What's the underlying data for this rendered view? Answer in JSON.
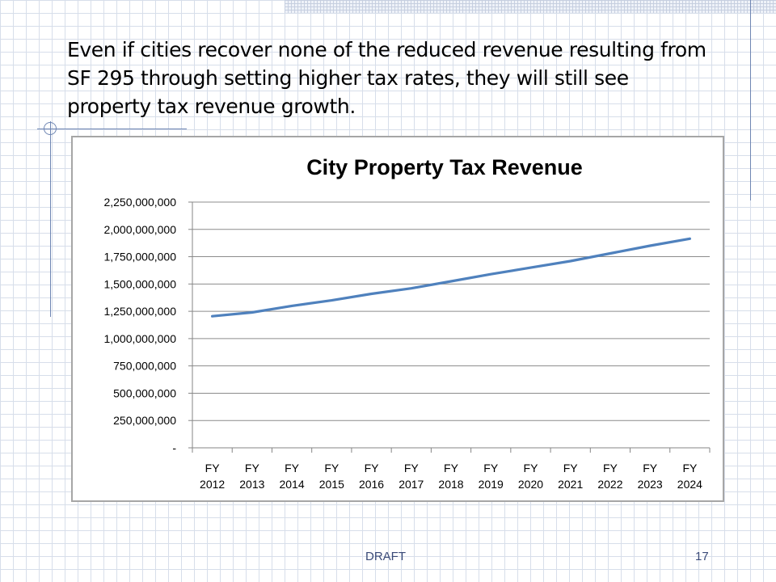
{
  "slide": {
    "title": "Even if cities recover none of the reduced revenue resulting from SF 295 through setting higher tax rates, they will still see property tax revenue growth.",
    "footer_label": "DRAFT",
    "page_number": "17"
  },
  "colors": {
    "line": "#4f81bd",
    "gridline": "#868686",
    "accent_rule": "#6f86b3"
  },
  "chart_data": {
    "type": "line",
    "title": "City Property Tax Revenue",
    "categories": [
      [
        "FY",
        "2012"
      ],
      [
        "FY",
        "2013"
      ],
      [
        "FY",
        "2014"
      ],
      [
        "FY",
        "2015"
      ],
      [
        "FY",
        "2016"
      ],
      [
        "FY",
        "2017"
      ],
      [
        "FY",
        "2018"
      ],
      [
        "FY",
        "2019"
      ],
      [
        "FY",
        "2020"
      ],
      [
        "FY",
        "2021"
      ],
      [
        "FY",
        "2022"
      ],
      [
        "FY",
        "2023"
      ],
      [
        "FY",
        "2024"
      ]
    ],
    "series": [
      {
        "values": [
          1205000000,
          1240000000,
          1300000000,
          1350000000,
          1410000000,
          1460000000,
          1525000000,
          1590000000,
          1650000000,
          1710000000,
          1780000000,
          1850000000,
          1915000000
        ]
      }
    ],
    "ylim": [
      0,
      2250000000
    ],
    "ytick_values": [
      0,
      250000000,
      500000000,
      750000000,
      1000000000,
      1250000000,
      1500000000,
      1750000000,
      2000000000,
      2250000000
    ],
    "ytick_labels": [
      "-",
      "250,000,000",
      "500,000,000",
      "750,000,000",
      "1,000,000,000",
      "1,250,000,000",
      "1,500,000,000",
      "1,750,000,000",
      "2,000,000,000",
      "2,250,000,000"
    ],
    "grid": true,
    "legend": "none"
  }
}
